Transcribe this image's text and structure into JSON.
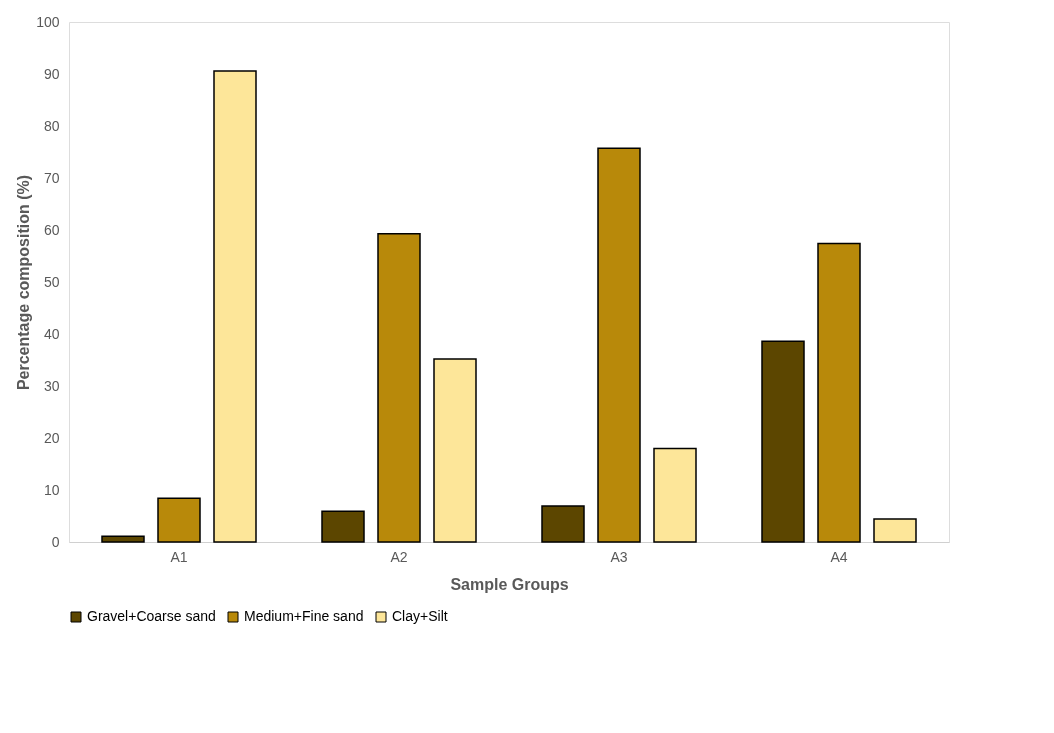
{
  "chart_data": {
    "type": "bar",
    "xlabel": "Sample Groups",
    "ylabel": "Percentage composition (%)",
    "categories": [
      "A1",
      "A2",
      "A3",
      "A4"
    ],
    "series": [
      {
        "name": "Gravel+Coarse sand",
        "color": "#5c4600",
        "values": [
          1.1,
          5.9,
          6.9,
          38.6
        ]
      },
      {
        "name": "Medium+Fine sand",
        "color": "#b8890a",
        "values": [
          8.4,
          59.3,
          75.7,
          57.4
        ]
      },
      {
        "name": "Clay+Silt",
        "color": "#fde699",
        "values": [
          90.6,
          35.2,
          18.0,
          4.4
        ]
      }
    ],
    "ylim": [
      0,
      100
    ],
    "yticks": [
      0,
      10,
      20,
      30,
      40,
      50,
      60,
      70,
      80,
      90,
      100
    ],
    "grid": false,
    "legend": "bottom"
  }
}
